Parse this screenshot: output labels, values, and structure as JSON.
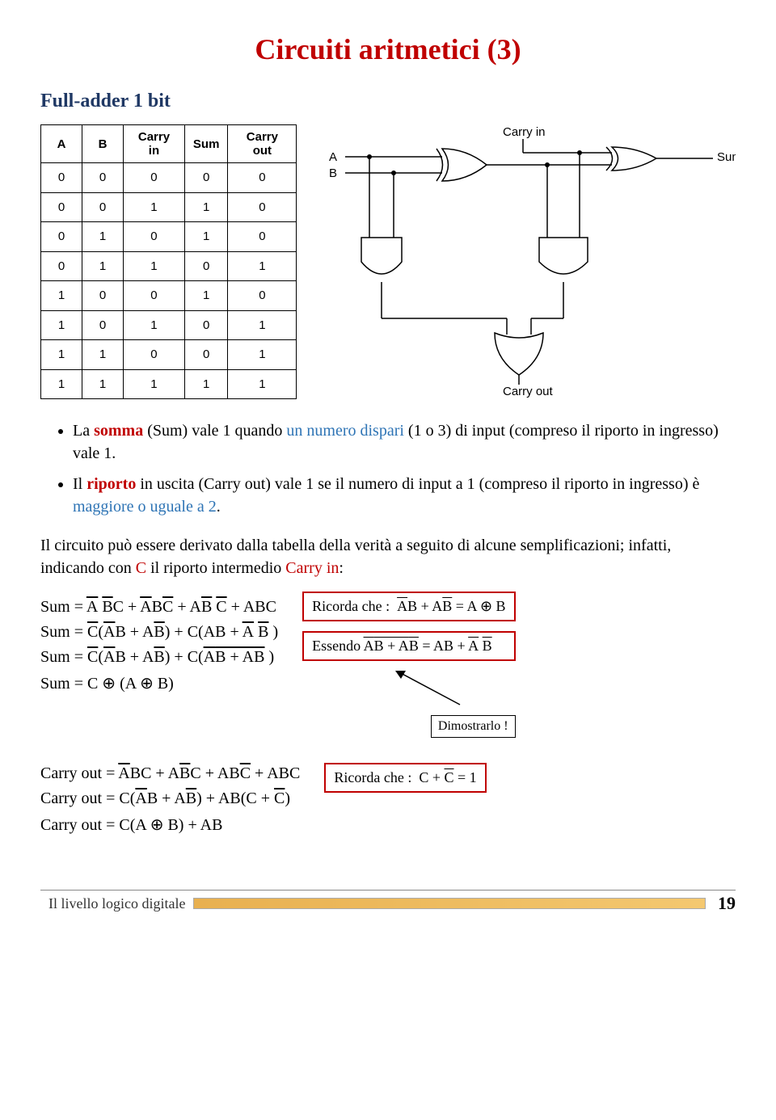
{
  "title": "Circuiti aritmetici (3)",
  "title_color": "#c00000",
  "subtitle": "Full-adder 1 bit",
  "subtitle_color": "#1f3864",
  "truth_table": {
    "headers": [
      "A",
      "B",
      "Carry in",
      "Sum",
      "Carry out"
    ],
    "rows": [
      [
        "0",
        "0",
        "0",
        "0",
        "0"
      ],
      [
        "0",
        "0",
        "1",
        "1",
        "0"
      ],
      [
        "0",
        "1",
        "0",
        "1",
        "0"
      ],
      [
        "0",
        "1",
        "1",
        "0",
        "1"
      ],
      [
        "1",
        "0",
        "0",
        "1",
        "0"
      ],
      [
        "1",
        "0",
        "1",
        "0",
        "1"
      ],
      [
        "1",
        "1",
        "0",
        "0",
        "1"
      ],
      [
        "1",
        "1",
        "1",
        "1",
        "1"
      ]
    ]
  },
  "circuit_labels": {
    "carry_in": "Carry in",
    "a": "A",
    "b": "B",
    "sum": "Sum",
    "carry_out": "Carry out"
  },
  "bullet1": {
    "pre": "La ",
    "somma": "somma",
    "mid1": " (Sum) vale 1 quando ",
    "dispari": "un numero dispari",
    "mid2": " (1 o 3) di input (compreso il riporto in ingresso) vale 1."
  },
  "bullet2": {
    "pre": "Il ",
    "riporto": "riporto",
    "mid1": " in uscita (Carry out) vale 1 se il numero di input a 1 (compreso il riporto in ingresso) è ",
    "maggiore": "maggiore o uguale a 2",
    "end": "."
  },
  "para1": {
    "pre": "Il circuito può essere derivato dalla tabella della verità a seguito di alcune semplificazioni; infatti, indicando con ",
    "c": "C",
    "mid": " il riporto intermedio ",
    "carryin": "Carry in",
    "end": ":"
  },
  "sum_eqs": {
    "eq1_lhs": "Sum",
    "eq2_lhs": "Sum",
    "eq3_lhs": "Sum",
    "eq4_lhs": "Sum"
  },
  "box_ricorda1_label": "Ricorda che :",
  "box_essendo_label": "Essendo",
  "dimostrarlo": "Dimostrarlo !",
  "carry_eqs": {
    "eq1_lhs": "Carry out",
    "eq2_lhs": "Carry out",
    "eq3_lhs": "Carry out"
  },
  "box_ricorda2_label": "Ricorda che :",
  "footer_text": "Il livello logico digitale",
  "page_number": "19",
  "colors": {
    "red": "#c00000",
    "darkblue": "#1f3864",
    "lightblue": "#2e74b5"
  }
}
